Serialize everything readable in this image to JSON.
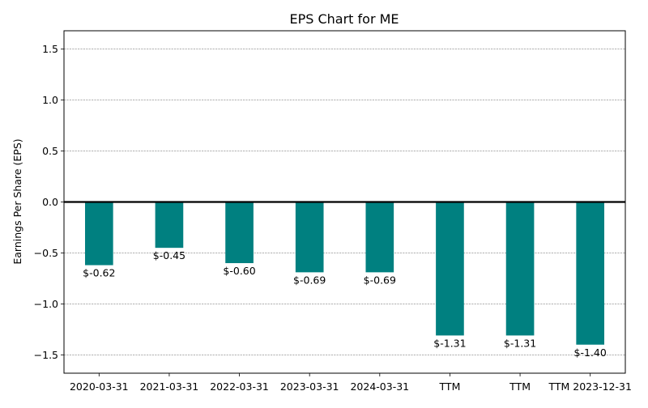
{
  "chart_data": {
    "type": "bar",
    "title": "EPS Chart for ME",
    "xlabel": "",
    "ylabel": "Earnings Per Share (EPS)",
    "categories": [
      "2020-03-31",
      "2021-03-31",
      "2022-03-31",
      "2023-03-31",
      "2024-03-31",
      "TTM",
      "TTM",
      "TTM 2023-12-31"
    ],
    "values": [
      -0.62,
      -0.45,
      -0.6,
      -0.69,
      -0.69,
      -1.31,
      -1.31,
      -1.4
    ],
    "data_labels": [
      "$-0.62",
      "$-0.45",
      "$-0.60",
      "$-0.69",
      "$-0.69",
      "$-1.31",
      "$-1.31",
      "$-1.40"
    ],
    "ylim": [
      -1.68,
      1.68
    ],
    "yticks": [
      -1.5,
      -1.0,
      -0.5,
      0.0,
      0.5,
      1.0,
      1.5
    ],
    "ytick_labels": [
      "−1.5",
      "−1.0",
      "−0.5",
      "0.0",
      "0.5",
      "1.0",
      "1.5"
    ],
    "grid": true,
    "zero_line": true,
    "bar_color": "#008080"
  }
}
